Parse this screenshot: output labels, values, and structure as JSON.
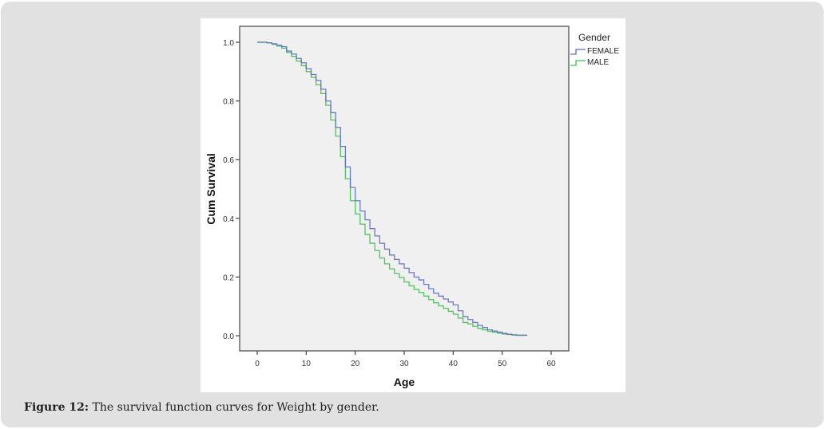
{
  "caption": {
    "label": "Figure 12:",
    "text": " The survival function curves for Weight by gender."
  },
  "colors": {
    "female": "#5b6fbf",
    "male": "#3fbf52",
    "plot_bg": "#f0f0f0",
    "card_bg": "#e1e1e1"
  },
  "chart_data": {
    "type": "line",
    "step": true,
    "title": "",
    "xlabel": "Age",
    "ylabel": "Cum Survival",
    "xlim": [
      -3,
      64
    ],
    "ylim": [
      -0.03,
      1.05
    ],
    "xticks": [
      0,
      10,
      20,
      30,
      40,
      50,
      60
    ],
    "xtick_labels": [
      "0",
      "10",
      "20",
      "30",
      "40",
      "50",
      "60"
    ],
    "yticks": [
      0.0,
      0.2,
      0.4,
      0.6,
      0.8,
      1.0
    ],
    "ytick_labels": [
      "0.0",
      "0.2",
      "0.4",
      "0.6",
      "0.8",
      "1.0"
    ],
    "grid": false,
    "legend": {
      "title": "Gender",
      "placement": "right"
    },
    "series": [
      {
        "name": "FEMALE",
        "color": "#5b6fbf",
        "x": [
          0,
          2,
          3,
          4,
          5,
          6,
          7,
          8,
          9,
          10,
          11,
          12,
          13,
          14,
          15,
          16,
          17,
          18,
          19,
          20,
          21,
          22,
          23,
          24,
          25,
          26,
          27,
          28,
          29,
          30,
          31,
          32,
          33,
          34,
          35,
          36,
          37,
          38,
          39,
          40,
          41,
          42,
          43,
          44,
          45,
          46,
          47,
          48,
          49,
          50,
          51,
          52,
          53,
          55
        ],
        "y": [
          1.0,
          0.998,
          0.995,
          0.99,
          0.985,
          0.97,
          0.96,
          0.945,
          0.93,
          0.91,
          0.89,
          0.87,
          0.84,
          0.8,
          0.76,
          0.71,
          0.645,
          0.575,
          0.505,
          0.46,
          0.425,
          0.395,
          0.365,
          0.34,
          0.315,
          0.295,
          0.275,
          0.26,
          0.245,
          0.23,
          0.215,
          0.2,
          0.19,
          0.175,
          0.16,
          0.145,
          0.135,
          0.125,
          0.115,
          0.105,
          0.085,
          0.065,
          0.055,
          0.045,
          0.035,
          0.028,
          0.02,
          0.016,
          0.012,
          0.008,
          0.005,
          0.003,
          0.002,
          0.0
        ]
      },
      {
        "name": "MALE",
        "color": "#3fbf52",
        "x": [
          0,
          2,
          3,
          4,
          5,
          6,
          7,
          8,
          9,
          10,
          11,
          12,
          13,
          14,
          15,
          16,
          17,
          18,
          19,
          20,
          21,
          22,
          23,
          24,
          25,
          26,
          27,
          28,
          29,
          30,
          31,
          32,
          33,
          34,
          35,
          36,
          37,
          38,
          39,
          40,
          41,
          42,
          43,
          44,
          45,
          46,
          47,
          48,
          49,
          50,
          51,
          52,
          53,
          55
        ],
        "y": [
          1.0,
          0.998,
          0.993,
          0.987,
          0.98,
          0.965,
          0.952,
          0.936,
          0.92,
          0.9,
          0.88,
          0.855,
          0.825,
          0.785,
          0.735,
          0.68,
          0.61,
          0.535,
          0.46,
          0.415,
          0.38,
          0.345,
          0.315,
          0.29,
          0.265,
          0.245,
          0.228,
          0.212,
          0.198,
          0.183,
          0.17,
          0.158,
          0.147,
          0.135,
          0.123,
          0.112,
          0.102,
          0.093,
          0.083,
          0.073,
          0.06,
          0.045,
          0.04,
          0.032,
          0.025,
          0.02,
          0.015,
          0.012,
          0.009,
          0.006,
          0.004,
          0.002,
          0.001,
          0.0
        ]
      }
    ]
  }
}
